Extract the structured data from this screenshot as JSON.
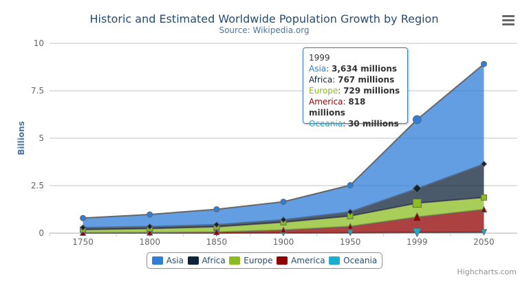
{
  "chart_data": {
    "type": "area",
    "stacking": "normal",
    "title": "Historic and Estimated Worldwide Population Growth by Region",
    "subtitle": "Source: Wikipedia.org",
    "xlabel": "",
    "ylabel": "Billions",
    "categories": [
      "1750",
      "1800",
      "1850",
      "1900",
      "1950",
      "1999",
      "2050"
    ],
    "y_ticks": [
      "0",
      "2.5",
      "5",
      "7.5",
      "10"
    ],
    "ylim": [
      0,
      10000
    ],
    "value_units": "millions",
    "grid": true,
    "legend_position": "bottom",
    "series": [
      {
        "name": "Asia",
        "color": "#2f7ed8",
        "marker": "circle",
        "values": [
          502,
          635,
          809,
          947,
          1402,
          3634,
          5268
        ]
      },
      {
        "name": "Africa",
        "color": "#0d233a",
        "marker": "diamond",
        "values": [
          106,
          107,
          111,
          133,
          221,
          767,
          1766
        ]
      },
      {
        "name": "Europe",
        "color": "#8bbc21",
        "marker": "square",
        "values": [
          163,
          203,
          276,
          408,
          547,
          729,
          628
        ]
      },
      {
        "name": "America",
        "color": "#910000",
        "marker": "triangle",
        "values": [
          18,
          31,
          54,
          156,
          339,
          818,
          1201
        ]
      },
      {
        "name": "Oceania",
        "color": "#1aadce",
        "marker": "triangle-down",
        "values": [
          2,
          2,
          2,
          6,
          13,
          30,
          46
        ]
      }
    ]
  },
  "tooltip": {
    "header": "1999",
    "rows": [
      {
        "name": "Asia",
        "value": "3,634 millions",
        "color": "#2f7ed8"
      },
      {
        "name": "Africa",
        "value": "767 millions",
        "color": "#0d233a"
      },
      {
        "name": "Europe",
        "value": "729 millions",
        "color": "#8bbc21"
      },
      {
        "name": "America",
        "value": "818 millions",
        "color": "#910000"
      },
      {
        "name": "Oceania",
        "value": "30 millions",
        "color": "#1aadce"
      }
    ]
  },
  "menu_icon": "hamburger-menu-icon",
  "credit": "Highcharts.com"
}
